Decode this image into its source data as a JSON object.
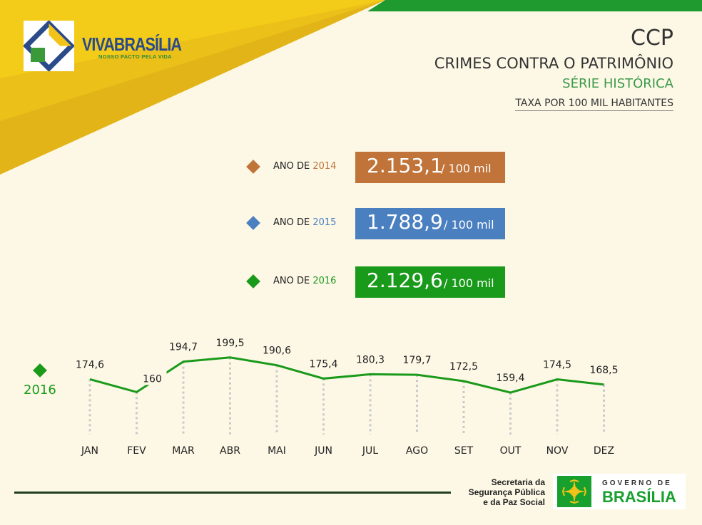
{
  "brand": {
    "name": "VIVABRASÍLIA",
    "tagline": "NOSSO PACTO PELA VIDA"
  },
  "header": {
    "abbr": "CCP",
    "title": "CRIMES CONTRA O PATRIMÔNIO",
    "subtitle": "SÉRIE HISTÓRICA",
    "unit": "TAXA POR 100 MIL HABITANTES"
  },
  "annual": [
    {
      "prefix": "ANO DE ",
      "year": "2014",
      "value": "2.153,1",
      "per": "/ 100 mil",
      "color": "#c0743a"
    },
    {
      "prefix": "ANO DE ",
      "year": "2015",
      "value": "1.788,9",
      "per": "/ 100 mil",
      "color": "#4a7fc0"
    },
    {
      "prefix": "ANO DE ",
      "year": "2016",
      "value": "2.129,6",
      "per": "/ 100 mil",
      "color": "#1a9a1a"
    }
  ],
  "chart_data": {
    "type": "line",
    "categories": [
      "JAN",
      "FEV",
      "MAR",
      "ABR",
      "MAI",
      "JUN",
      "JUL",
      "AGO",
      "SET",
      "OUT",
      "NOV",
      "DEZ"
    ],
    "series": [
      {
        "name": "2016",
        "values": [
          174.6,
          160,
          194.7,
          199.5,
          190.6,
          175.4,
          180.3,
          179.7,
          172.5,
          159.4,
          174.5,
          168.5
        ]
      }
    ],
    "labels": [
      "174,6",
      "160",
      "194,7",
      "199,5",
      "190,6",
      "175,4",
      "180,3",
      "179,7",
      "172,5",
      "159,4",
      "174,5",
      "168,5"
    ],
    "ylim": [
      140,
      205
    ],
    "grid": true,
    "color": "#1a9a1a"
  },
  "footer": {
    "secretaria": [
      "Secretaria da",
      "Segurança Pública",
      "e da Paz Social"
    ],
    "gov_top": "GOVERNO DE",
    "gov_main": "BRASÍLIA"
  }
}
